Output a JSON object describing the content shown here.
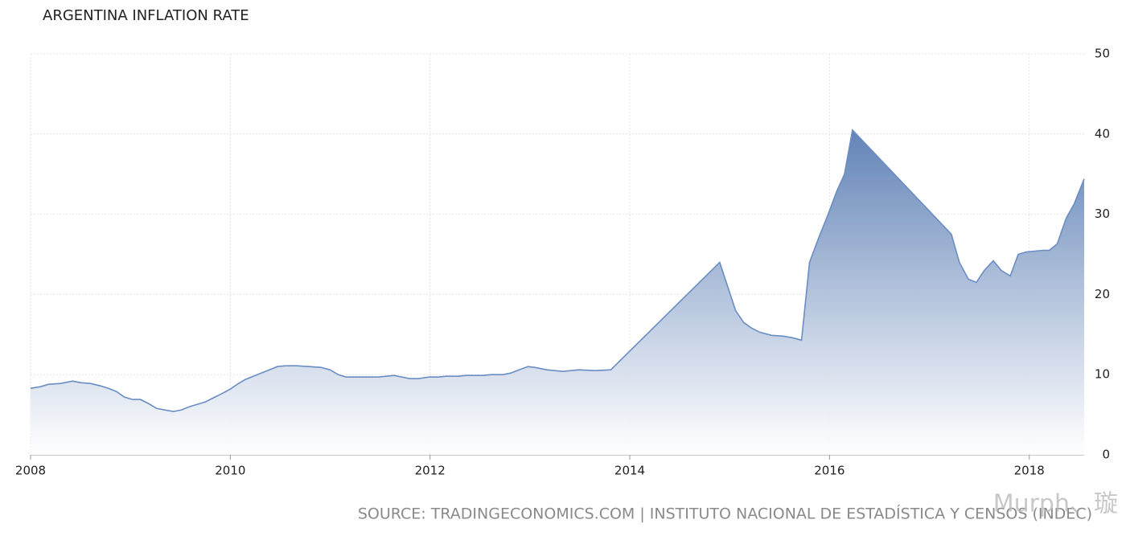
{
  "chart_data": {
    "type": "area",
    "title": "ARGENTINA INFLATION RATE",
    "source": "SOURCE: TRADINGECONOMICS.COM | INSTITUTO NACIONAL DE ESTADÍSTICA Y CENSOS (INDEC)",
    "watermark": "Murph、璇",
    "x": [
      2008.0,
      2008.1,
      2008.18,
      2008.3,
      2008.42,
      2008.5,
      2008.6,
      2008.7,
      2008.78,
      2008.86,
      2008.94,
      2009.02,
      2009.1,
      2009.18,
      2009.26,
      2009.34,
      2009.43,
      2009.51,
      2009.59,
      2009.67,
      2009.75,
      2009.83,
      2009.91,
      2010.0,
      2010.07,
      2010.15,
      2010.23,
      2010.31,
      2010.39,
      2010.47,
      2010.55,
      2010.67,
      2010.79,
      2010.91,
      2011.0,
      2011.08,
      2011.16,
      2011.48,
      2011.64,
      2011.8,
      2011.88,
      2011.99,
      2012.08,
      2012.16,
      2012.28,
      2012.36,
      2012.53,
      2012.61,
      2012.73,
      2012.81,
      2012.89,
      2012.98,
      2013.05,
      2013.17,
      2013.33,
      2013.49,
      2013.65,
      2013.81,
      2014.9,
      2014.98,
      2015.06,
      2015.14,
      2015.22,
      2015.3,
      2015.42,
      2015.54,
      2015.63,
      2015.72,
      2015.8,
      2015.89,
      2015.98,
      2016.07,
      2016.15,
      2016.23,
      2017.22,
      2017.3,
      2017.39,
      2017.47,
      2017.55,
      2017.64,
      2017.72,
      2017.81,
      2017.89,
      2017.97,
      2018.14,
      2018.2,
      2018.28,
      2018.37,
      2018.45,
      2018.55
    ],
    "series": [
      {
        "name": "Inflation rate",
        "color": "#6a8dc4",
        "values": [
          8.3,
          8.5,
          8.8,
          8.9,
          9.2,
          9.0,
          8.9,
          8.6,
          8.3,
          7.9,
          7.2,
          6.9,
          6.9,
          6.4,
          5.8,
          5.6,
          5.4,
          5.6,
          6.0,
          6.3,
          6.6,
          7.1,
          7.6,
          8.2,
          8.8,
          9.4,
          9.8,
          10.2,
          10.6,
          11.0,
          11.1,
          11.1,
          11.0,
          10.9,
          10.6,
          10.0,
          9.7,
          9.7,
          9.9,
          9.5,
          9.5,
          9.7,
          9.7,
          9.8,
          9.8,
          9.9,
          9.9,
          10.0,
          10.0,
          10.2,
          10.6,
          11.0,
          10.9,
          10.6,
          10.4,
          10.6,
          10.5,
          10.6,
          24.0,
          21.0,
          18.0,
          16.5,
          15.8,
          15.3,
          14.9,
          14.8,
          14.6,
          14.3,
          24.0,
          27.0,
          29.8,
          32.8,
          35.0,
          40.5,
          27.5,
          24.0,
          21.9,
          21.5,
          23.0,
          24.2,
          23.0,
          22.3,
          25.0,
          25.3,
          25.5,
          25.5,
          26.3,
          29.5,
          31.3,
          34.4
        ]
      }
    ],
    "xlim": [
      2008,
      2018.55
    ],
    "xticks": [
      2008,
      2010,
      2012,
      2014,
      2016,
      2018
    ],
    "ylim": [
      0,
      50
    ],
    "yticks": [
      0,
      10,
      20,
      30,
      40,
      50
    ],
    "grid": true
  }
}
